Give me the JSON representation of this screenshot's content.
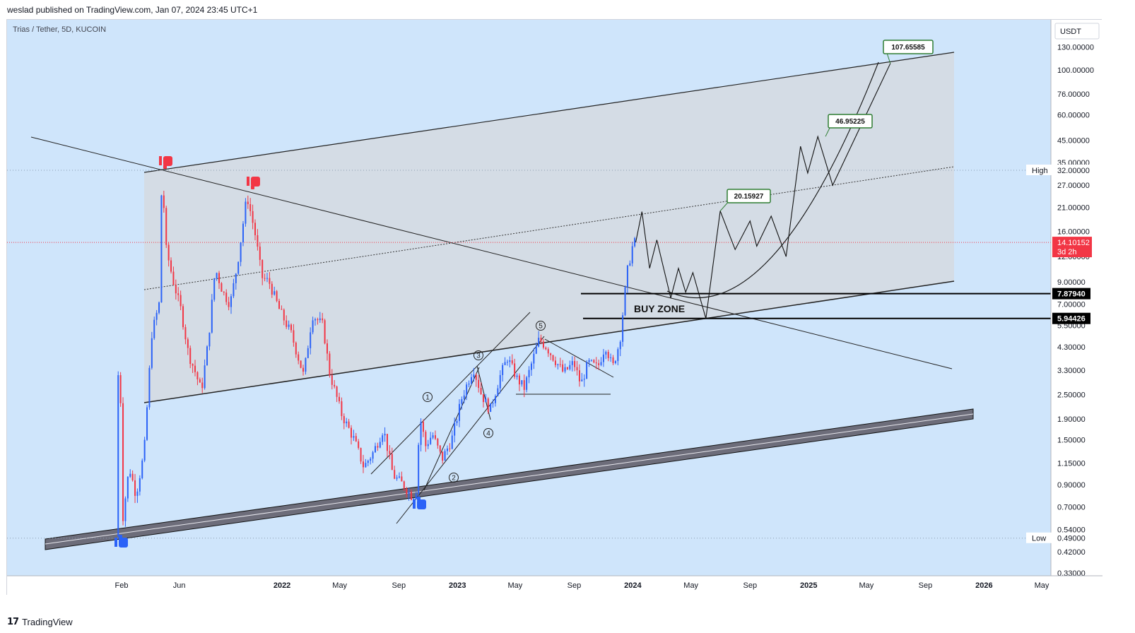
{
  "header": {
    "published": "weslad published on TradingView.com, Jan 07, 2024 23:45 UTC+1"
  },
  "footer": {
    "brand": "TradingView"
  },
  "colors": {
    "background": "#cfe5fb",
    "channel_fill": "#d5dbe0",
    "up_candle": "#2b62f7",
    "down_candle": "#f23645",
    "price_badge": "#f23645",
    "target_box_border": "#2e7d32",
    "buy_zone_line": "#000000",
    "support_band": "#6d6d7a"
  },
  "chart_data": {
    "type": "candlestick",
    "symbol": "Trias / Tether, 5D, KUCOIN",
    "currency": "USDT",
    "scale": "log",
    "ylim": [
      0.3,
      150
    ],
    "y_ticks": [
      "130.00000",
      "100.00000",
      "76.00000",
      "60.00000",
      "45.00000",
      "35.00000",
      "27.00000",
      "21.00000",
      "16.00000",
      "12.00000",
      "9.00000",
      "7.00000",
      "5.50000",
      "4.30000",
      "3.30000",
      "2.50000",
      "1.90000",
      "1.50000",
      "1.15000",
      "0.90000",
      "0.70000",
      "0.54000",
      "0.42000",
      "0.33000"
    ],
    "y_tick_values": [
      130,
      100,
      76,
      60,
      45,
      35,
      27,
      21,
      16,
      12,
      9,
      7,
      5.5,
      4.3,
      3.3,
      2.5,
      1.9,
      1.5,
      1.15,
      0.9,
      0.7,
      0.54,
      0.42,
      0.33
    ],
    "x_ticks": [
      {
        "label": "Feb",
        "date": "2021-02-01"
      },
      {
        "label": "Jun",
        "date": "2021-06-01"
      },
      {
        "label": "2022",
        "date": "2022-01-01"
      },
      {
        "label": "May",
        "date": "2022-05-01"
      },
      {
        "label": "Sep",
        "date": "2022-09-01"
      },
      {
        "label": "2023",
        "date": "2023-01-01"
      },
      {
        "label": "May",
        "date": "2023-05-01"
      },
      {
        "label": "Sep",
        "date": "2023-09-01"
      },
      {
        "label": "2024",
        "date": "2024-01-01"
      },
      {
        "label": "May",
        "date": "2024-05-01"
      },
      {
        "label": "Sep",
        "date": "2024-09-01"
      },
      {
        "label": "2025",
        "date": "2025-01-01"
      },
      {
        "label": "May",
        "date": "2025-05-01"
      },
      {
        "label": "Sep",
        "date": "2025-09-01"
      },
      {
        "label": "2026",
        "date": "2026-01-01"
      },
      {
        "label": "May",
        "date": "2026-05-01"
      }
    ],
    "price_path": [
      [
        "2021-01-25",
        0.5
      ],
      [
        "2021-02-01",
        6.5
      ],
      [
        "2021-02-08",
        0.6
      ],
      [
        "2021-02-22",
        1.1
      ],
      [
        "2021-03-08",
        0.8
      ],
      [
        "2021-03-25",
        1.3
      ],
      [
        "2021-04-10",
        5.0
      ],
      [
        "2021-04-25",
        7.0
      ],
      [
        "2021-05-01",
        31.0
      ],
      [
        "2021-05-10",
        13.0
      ],
      [
        "2021-05-25",
        9.0
      ],
      [
        "2021-06-10",
        6.5
      ],
      [
        "2021-06-25",
        4.0
      ],
      [
        "2021-07-10",
        3.2
      ],
      [
        "2021-07-22",
        2.6
      ],
      [
        "2021-08-05",
        4.5
      ],
      [
        "2021-08-20",
        10.5
      ],
      [
        "2021-09-05",
        8.0
      ],
      [
        "2021-09-20",
        7.0
      ],
      [
        "2021-10-05",
        11.0
      ],
      [
        "2021-10-25",
        24.0
      ],
      [
        "2021-11-10",
        16.0
      ],
      [
        "2021-11-25",
        9.5
      ],
      [
        "2021-12-10",
        9.0
      ],
      [
        "2022-01-01",
        6.5
      ],
      [
        "2022-01-25",
        5.0
      ],
      [
        "2022-02-20",
        3.1
      ],
      [
        "2022-03-10",
        6.2
      ],
      [
        "2022-04-01",
        5.5
      ],
      [
        "2022-04-15",
        3.2
      ],
      [
        "2022-05-10",
        2.0
      ],
      [
        "2022-06-05",
        1.5
      ],
      [
        "2022-06-25",
        1.1
      ],
      [
        "2022-07-15",
        1.3
      ],
      [
        "2022-08-05",
        1.7
      ],
      [
        "2022-08-25",
        1.0
      ],
      [
        "2022-09-15",
        0.9
      ],
      [
        "2022-10-05",
        0.78
      ],
      [
        "2022-10-12",
        0.85
      ],
      [
        "2022-10-20",
        1.95
      ],
      [
        "2022-11-01",
        1.4
      ],
      [
        "2022-11-15",
        1.6
      ],
      [
        "2022-12-05",
        1.2
      ],
      [
        "2022-12-25",
        1.5
      ],
      [
        "2023-01-15",
        2.4
      ],
      [
        "2023-02-08",
        3.4
      ],
      [
        "2023-02-25",
        2.5
      ],
      [
        "2023-03-15",
        2.1
      ],
      [
        "2023-04-05",
        3.1
      ],
      [
        "2023-04-20",
        3.8
      ],
      [
        "2023-05-10",
        3.0
      ],
      [
        "2023-05-25",
        2.7
      ],
      [
        "2023-06-10",
        3.6
      ],
      [
        "2023-06-25",
        4.7
      ],
      [
        "2023-07-10",
        4.3
      ],
      [
        "2023-07-25",
        3.8
      ],
      [
        "2023-08-15",
        3.2
      ],
      [
        "2023-09-05",
        3.6
      ],
      [
        "2023-09-20",
        2.8
      ],
      [
        "2023-10-05",
        3.6
      ],
      [
        "2023-10-25",
        3.4
      ],
      [
        "2023-11-10",
        4.4
      ],
      [
        "2023-11-25",
        3.4
      ],
      [
        "2023-12-10",
        4.6
      ],
      [
        "2023-12-25",
        10.0
      ],
      [
        "2024-01-07",
        14.1
      ]
    ],
    "current_price": {
      "label": "14.10152",
      "countdown": "3d 2h",
      "value": 14.10152
    },
    "levels": [
      {
        "label": "High",
        "value_label": "32.00000",
        "value": 32
      },
      {
        "label": "Low",
        "value_label": "0.49000",
        "value": 0.49
      }
    ],
    "buy_zone": {
      "label": "BUY ZONE",
      "upper": 7.8794,
      "lower": 5.94426,
      "upper_label": "7.87940",
      "lower_label": "5.94426"
    },
    "targets": [
      {
        "label": "20.15927",
        "value": 20.15927,
        "date": "2024-07-01"
      },
      {
        "label": "46.95225",
        "value": 46.95225,
        "date": "2025-02-05"
      },
      {
        "label": "107.65585",
        "value": 107.65585,
        "date": "2025-06-20"
      }
    ],
    "projection_path": [
      [
        "2024-01-07",
        14.1
      ],
      [
        "2024-01-20",
        20.0
      ],
      [
        "2024-02-05",
        10.5
      ],
      [
        "2024-02-20",
        14.5
      ],
      [
        "2024-03-20",
        7.5
      ],
      [
        "2024-04-05",
        10.5
      ],
      [
        "2024-04-20",
        8.0
      ],
      [
        "2024-05-05",
        10.0
      ],
      [
        "2024-06-01",
        5.94
      ],
      [
        "2024-07-01",
        20.16
      ],
      [
        "2024-08-01",
        13.0
      ],
      [
        "2024-09-01",
        18.0
      ],
      [
        "2024-09-15",
        13.5
      ],
      [
        "2024-10-15",
        19.0
      ],
      [
        "2024-11-15",
        12.0
      ],
      [
        "2024-12-15",
        42.0
      ],
      [
        "2024-12-30",
        31.0
      ],
      [
        "2025-01-20",
        46.95
      ],
      [
        "2025-02-20",
        27.0
      ],
      [
        "2025-06-20",
        107.65585
      ]
    ],
    "wave_labels": [
      "1",
      "2",
      "3",
      "4",
      "5"
    ]
  }
}
